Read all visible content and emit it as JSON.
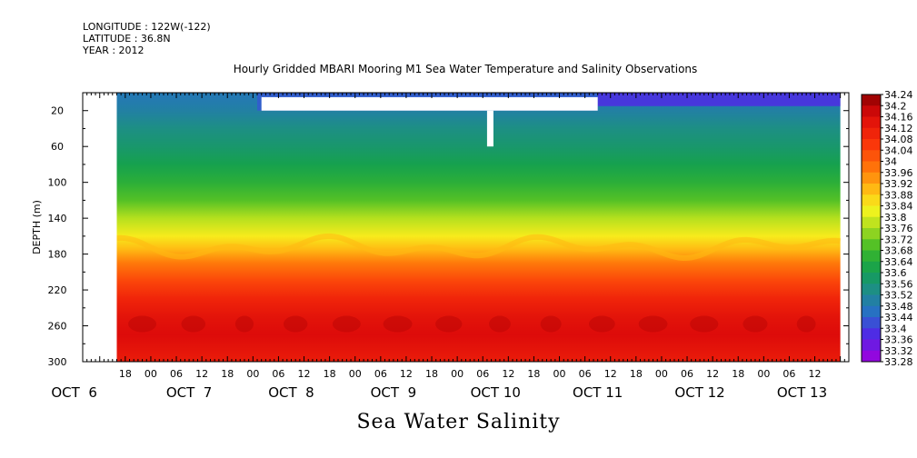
{
  "header": {
    "longitude": "LONGITUDE : 122W(-122)",
    "latitude": "LATITUDE : 36.8N",
    "year": "YEAR : 2012"
  },
  "footer_title": "Sea Water Salinity",
  "chart_data": {
    "type": "heatmap",
    "title": "Hourly Gridded MBARI Mooring M1 Sea Water Temperature and Salinity Observations",
    "xlabel": "",
    "ylabel": "DEPTH (m)",
    "ylim": [
      300,
      0
    ],
    "y_ticks": [
      "20",
      "60",
      "100",
      "140",
      "180",
      "220",
      "260",
      "300"
    ],
    "y_tick_values": [
      20,
      60,
      100,
      140,
      180,
      220,
      260,
      300
    ],
    "x_hours_range": [
      0,
      168
    ],
    "x_hour_ticks": [
      {
        "label": "18",
        "hour": -6
      },
      {
        "label": "00",
        "hour": 0
      },
      {
        "label": "06",
        "hour": 6
      },
      {
        "label": "12",
        "hour": 12
      },
      {
        "label": "18",
        "hour": 18
      },
      {
        "label": "00",
        "hour": 24
      },
      {
        "label": "06",
        "hour": 30
      },
      {
        "label": "12",
        "hour": 36
      },
      {
        "label": "18",
        "hour": 42
      },
      {
        "label": "00",
        "hour": 48
      },
      {
        "label": "06",
        "hour": 54
      },
      {
        "label": "12",
        "hour": 60
      },
      {
        "label": "18",
        "hour": 66
      },
      {
        "label": "00",
        "hour": 72
      },
      {
        "label": "06",
        "hour": 78
      },
      {
        "label": "12",
        "hour": 84
      },
      {
        "label": "18",
        "hour": 90
      },
      {
        "label": "00",
        "hour": 96
      },
      {
        "label": "06",
        "hour": 102
      },
      {
        "label": "12",
        "hour": 108
      },
      {
        "label": "18",
        "hour": 114
      },
      {
        "label": "00",
        "hour": 120
      },
      {
        "label": "06",
        "hour": 126
      },
      {
        "label": "12",
        "hour": 132
      },
      {
        "label": "18",
        "hour": 138
      },
      {
        "label": "00",
        "hour": 144
      },
      {
        "label": "06",
        "hour": 150
      },
      {
        "label": "12",
        "hour": 156
      }
    ],
    "x_day_labels": [
      {
        "label": "OCT  6",
        "hour": -18
      },
      {
        "label": "OCT  7",
        "hour": 9
      },
      {
        "label": "OCT  8",
        "hour": 33
      },
      {
        "label": "OCT  9",
        "hour": 57
      },
      {
        "label": "OCT 10",
        "hour": 81
      },
      {
        "label": "OCT 11",
        "hour": 105
      },
      {
        "label": "OCT 12",
        "hour": 129
      },
      {
        "label": "OCT 13",
        "hour": 153
      }
    ],
    "data_x_range": [
      -8,
      162
    ],
    "depth_profile": [
      {
        "depth": 5,
        "value": 33.48
      },
      {
        "depth": 20,
        "value": 33.5
      },
      {
        "depth": 40,
        "value": 33.54
      },
      {
        "depth": 60,
        "value": 33.57
      },
      {
        "depth": 80,
        "value": 33.61
      },
      {
        "depth": 100,
        "value": 33.65
      },
      {
        "depth": 120,
        "value": 33.7
      },
      {
        "depth": 140,
        "value": 33.77
      },
      {
        "depth": 160,
        "value": 33.84
      },
      {
        "depth": 175,
        "value": 33.9
      },
      {
        "depth": 190,
        "value": 33.97
      },
      {
        "depth": 210,
        "value": 34.04
      },
      {
        "depth": 230,
        "value": 34.1
      },
      {
        "depth": 250,
        "value": 34.14
      },
      {
        "depth": 270,
        "value": 34.16
      },
      {
        "depth": 300,
        "value": 34.12
      }
    ],
    "surface_fresh_periods": [
      {
        "start": 25,
        "end": 105,
        "depth_max": 20,
        "value": 33.43
      },
      {
        "start": 105,
        "end": 162,
        "depth_max": 15,
        "value": 33.38
      }
    ],
    "missing_data_regions": [
      {
        "start": -16,
        "end": -8,
        "depth_top": 0,
        "depth_bottom": 300
      },
      {
        "start": 26,
        "end": 105,
        "depth_top": 5,
        "depth_bottom": 20
      },
      {
        "start": 79,
        "end": 80.5,
        "depth_top": 20,
        "depth_bottom": 60
      }
    ],
    "halocline_depth_range": [
      160,
      185
    ],
    "colorbar": {
      "min": 33.28,
      "max": 34.24,
      "step": 0.04,
      "labels": [
        "34.24",
        "34.2",
        "34.16",
        "34.12",
        "34.08",
        "34.04",
        "34",
        "33.96",
        "33.92",
        "33.88",
        "33.84",
        "33.8",
        "33.76",
        "33.72",
        "33.68",
        "33.64",
        "33.6",
        "33.56",
        "33.52",
        "33.48",
        "33.44",
        "33.4",
        "33.36",
        "33.32",
        "33.28"
      ]
    }
  }
}
